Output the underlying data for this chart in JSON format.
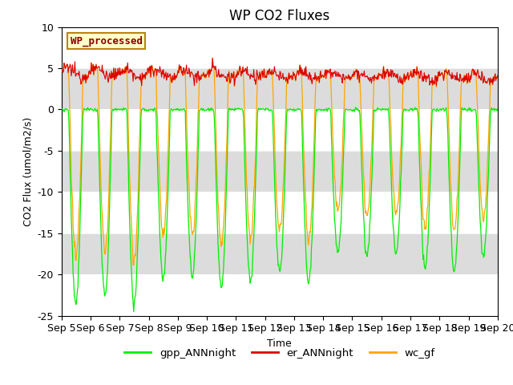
{
  "title": "WP CO2 Fluxes",
  "xlabel": "Time",
  "ylabel_text": "CO2 Flux (umol/m2/s)",
  "ylim": [
    -25,
    10
  ],
  "yticks": [
    -25,
    -20,
    -15,
    -10,
    -5,
    0,
    5,
    10
  ],
  "xticklabels": [
    "Sep 5",
    "Sep 6",
    "Sep 7",
    "Sep 8",
    "Sep 9",
    "Sep 10",
    "Sep 11",
    "Sep 12",
    "Sep 13",
    "Sep 14",
    "Sep 15",
    "Sep 16",
    "Sep 17",
    "Sep 18",
    "Sep 19",
    "Sep 20"
  ],
  "n_days": 15,
  "color_gpp": "#00EE00",
  "color_er": "#DD0000",
  "color_wc": "#FFA500",
  "legend_entries": [
    "gpp_ANNnight",
    "er_ANNnight",
    "wc_gf"
  ],
  "watermark_text": "WP_processed",
  "watermark_color": "#8B0000",
  "watermark_bg": "#FFFFCC",
  "background_color": "#ffffff",
  "grid_band_color": "#DCDCDC",
  "title_fontsize": 12,
  "axis_fontsize": 9,
  "tick_fontsize": 9
}
